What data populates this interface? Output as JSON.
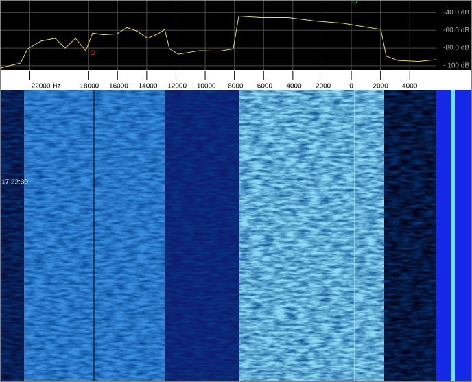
{
  "chart_data": {
    "type": "line",
    "x": [
      -24040,
      -22630,
      -22160,
      -21220,
      -20280,
      -19580,
      -18870,
      -18170,
      -17700,
      -17000,
      -16060,
      -15350,
      -14650,
      -13940,
      -13240,
      -12770,
      -12440,
      -11830,
      -10420,
      -9010,
      -8080,
      -7700,
      -6200,
      -4320,
      -2440,
      -560,
      850,
      2020,
      2390,
      3190,
      4600,
      5820
    ],
    "series": [
      {
        "color": "#e4dc5a",
        "values": [
          -102.5,
          -97,
          -81,
          -72,
          -69,
          -80,
          -69,
          -83,
          -63,
          -65,
          -64,
          -57,
          -61,
          -69,
          -64,
          -59,
          -81,
          -87,
          -83,
          -83.5,
          -81,
          -44,
          -45.5,
          -45.5,
          -49.5,
          -52,
          -56,
          -59,
          -89,
          -94,
          -95,
          -93
        ]
      }
    ],
    "xlim": [
      -24040,
      8260
    ],
    "ylim": [
      -104.7,
      -25.8
    ],
    "xticks": [
      {
        "value": -22000,
        "label": "-22000  Hz"
      },
      -18000,
      -16000,
      -14000,
      -12000,
      -10000,
      -8000,
      -6000,
      -4000,
      -2000,
      0,
      2000,
      4000
    ],
    "yticks": [
      {
        "value": -40,
        "label": "-40.0 dB"
      },
      {
        "value": -60,
        "label": "-60.0 dB"
      },
      {
        "value": -80,
        "label": "-80.0 dB"
      },
      {
        "value": -100,
        "label": "- 100 dB"
      }
    ],
    "grid": true
  },
  "waterfall": {
    "timestamp": "17:22:30"
  }
}
